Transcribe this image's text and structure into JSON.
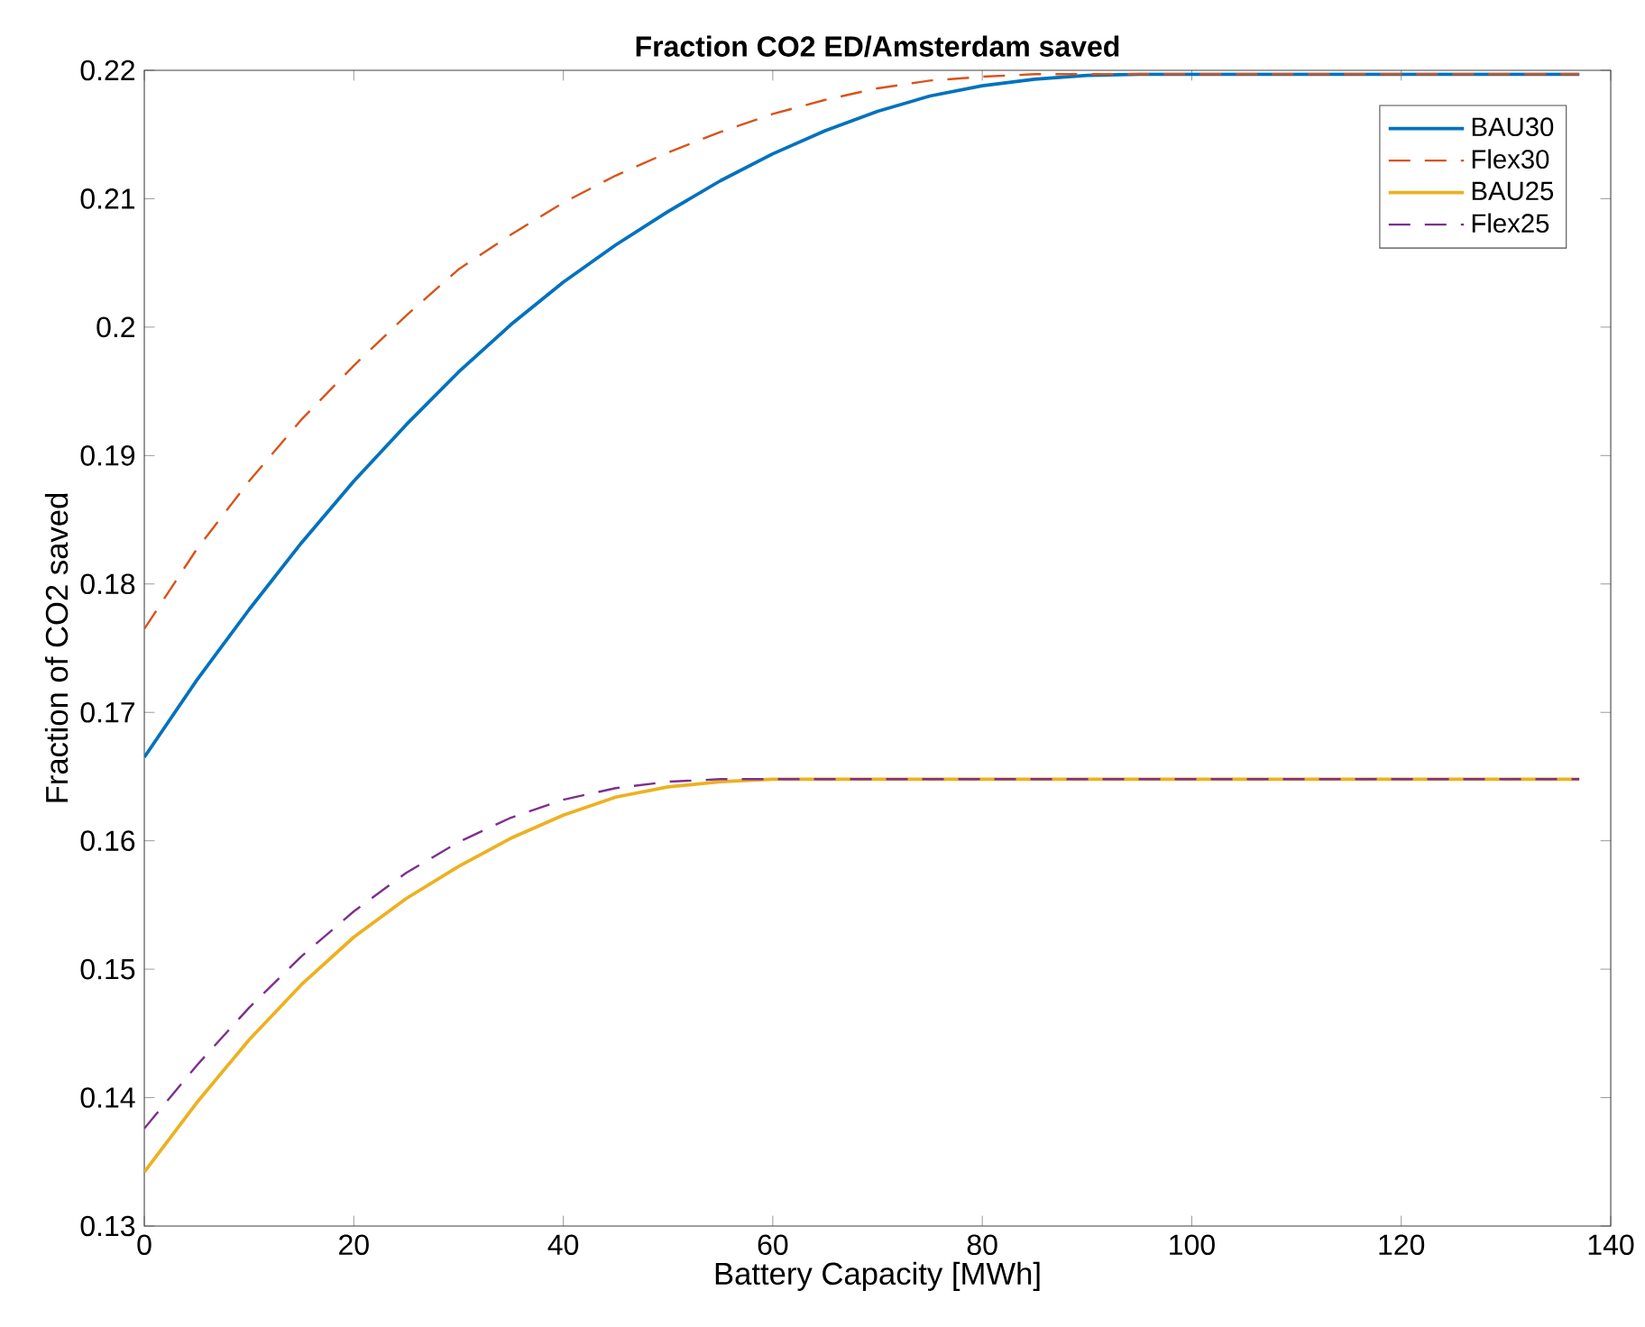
{
  "chart_data": {
    "type": "line",
    "title": "Fraction CO2 ED/Amsterdam saved",
    "xlabel": "Battery Capacity [MWh]",
    "ylabel": "Fraction of CO2 saved",
    "x": [
      0,
      5,
      10,
      15,
      20,
      25,
      30,
      35,
      40,
      45,
      50,
      55,
      60,
      65,
      70,
      75,
      80,
      85,
      90,
      95,
      100,
      110,
      120,
      137
    ],
    "series": [
      {
        "name": "BAU30",
        "color": "#0072bd",
        "line_style": "solid",
        "values": [
          0.1665,
          0.1725,
          0.178,
          0.1832,
          0.188,
          0.1924,
          0.1965,
          0.2002,
          0.2035,
          0.2064,
          0.209,
          0.2114,
          0.2135,
          0.2153,
          0.2168,
          0.218,
          0.2188,
          0.2193,
          0.2196,
          0.2197,
          0.2197,
          0.2197,
          0.2197,
          0.2197
        ]
      },
      {
        "name": "Flex30",
        "color": "#d95319",
        "line_style": "dashed",
        "values": [
          0.1765,
          0.1827,
          0.188,
          0.1928,
          0.197,
          0.2009,
          0.2045,
          0.2072,
          0.2097,
          0.2118,
          0.2136,
          0.2152,
          0.2166,
          0.2177,
          0.2186,
          0.2192,
          0.2195,
          0.2197,
          0.2197,
          0.2197,
          0.2197,
          0.2197,
          0.2197,
          0.2197
        ]
      },
      {
        "name": "BAU25",
        "color": "#edb120",
        "line_style": "solid",
        "values": [
          0.1342,
          0.1396,
          0.1445,
          0.1488,
          0.1525,
          0.1555,
          0.158,
          0.1602,
          0.162,
          0.1634,
          0.1642,
          0.1646,
          0.1648,
          0.1648,
          0.1648,
          0.1648,
          0.1648,
          0.1648,
          0.1648,
          0.1648,
          0.1648,
          0.1648,
          0.1648,
          0.1648
        ]
      },
      {
        "name": "Flex25",
        "color": "#7e2f8e",
        "line_style": "dashed",
        "values": [
          0.1376,
          0.1425,
          0.147,
          0.151,
          0.1545,
          0.1575,
          0.1599,
          0.1618,
          0.1632,
          0.1641,
          0.1646,
          0.1648,
          0.1648,
          0.1648,
          0.1648,
          0.1648,
          0.1648,
          0.1648,
          0.1648,
          0.1648,
          0.1648,
          0.1648,
          0.1648,
          0.1648
        ]
      }
    ],
    "xlim": [
      0,
      140
    ],
    "xticks": [
      0,
      20,
      40,
      60,
      80,
      100,
      120,
      140
    ],
    "ylim": [
      0.13,
      0.22
    ],
    "yticks": [
      0.13,
      0.14,
      0.15,
      0.16,
      0.17,
      0.18,
      0.19,
      0.2,
      0.21,
      0.22
    ],
    "legend": "top right",
    "grid": false
  }
}
